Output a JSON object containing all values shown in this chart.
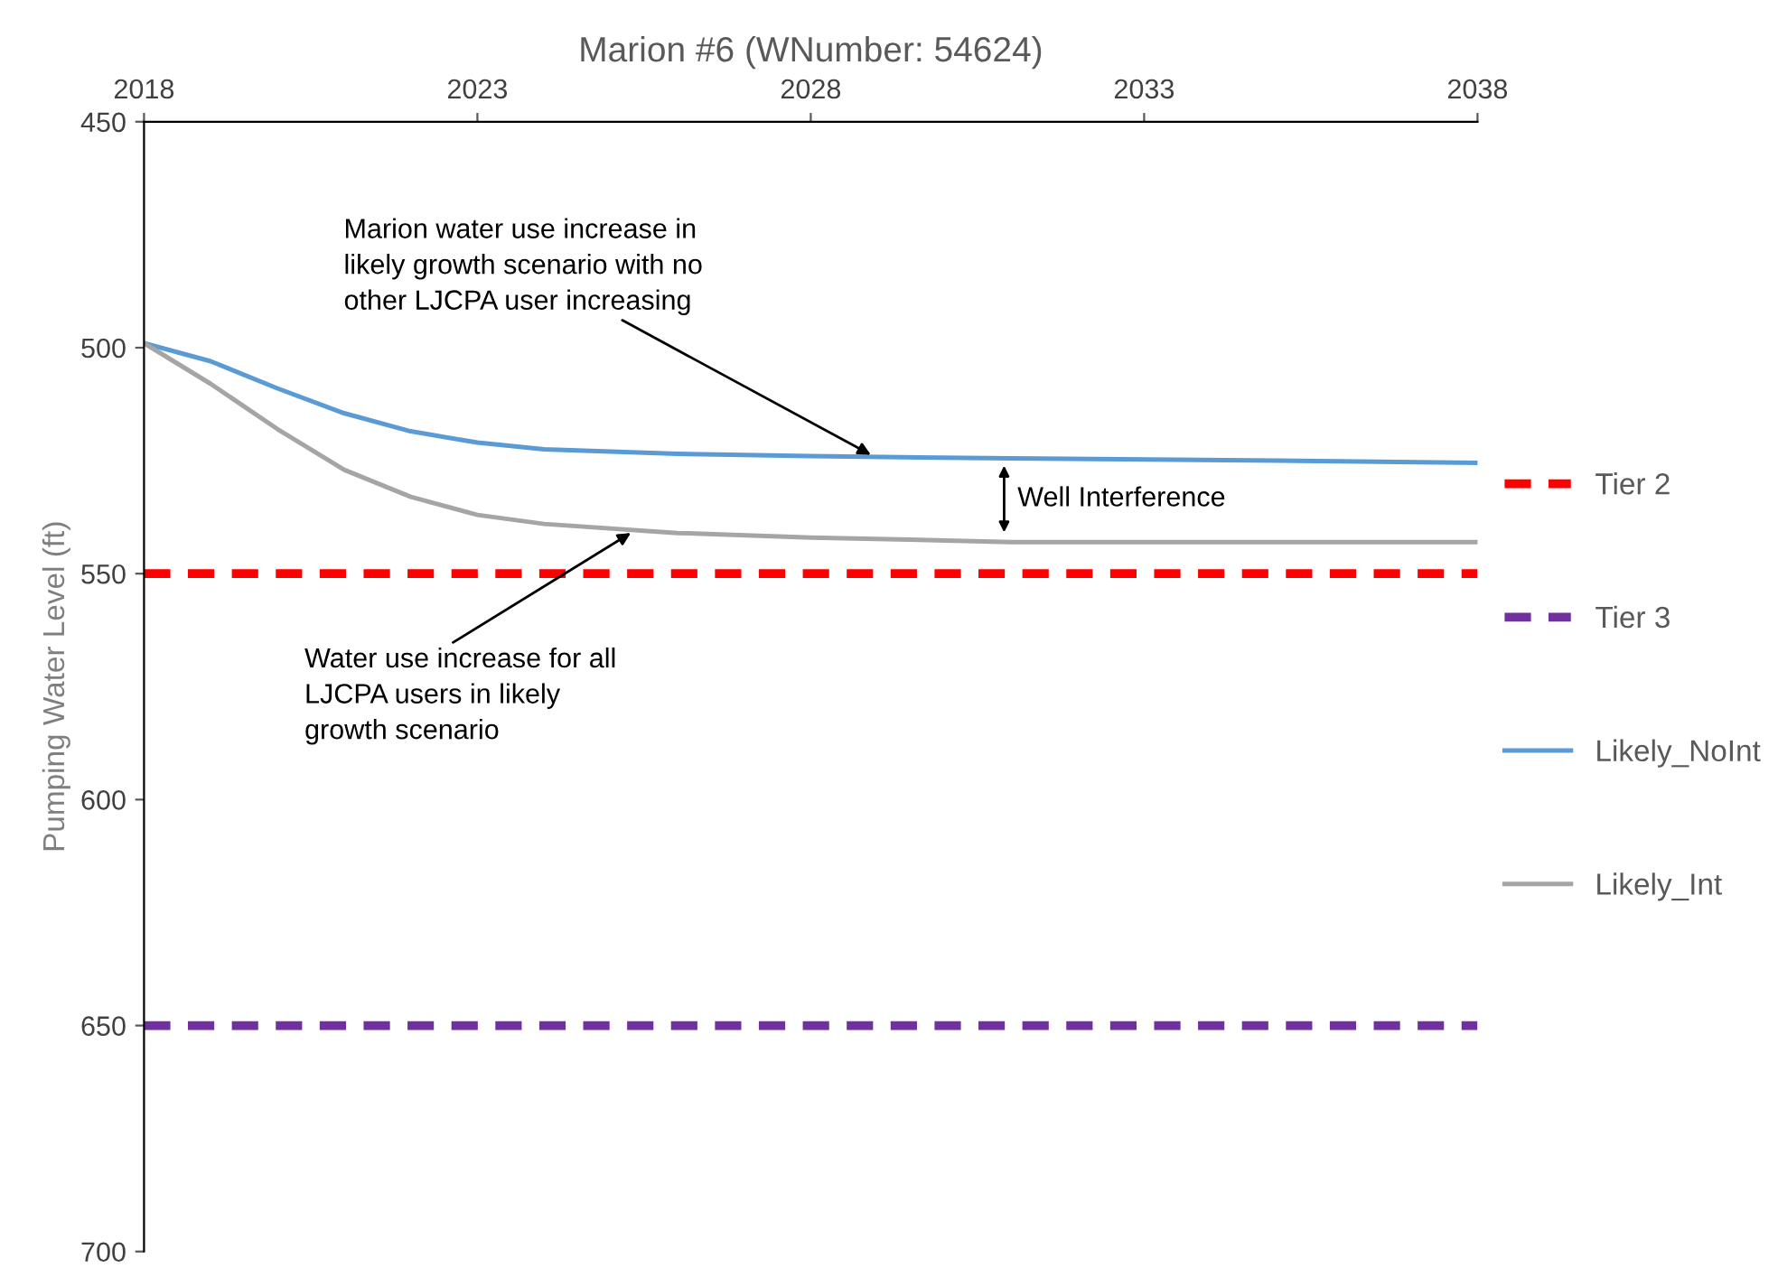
{
  "chart_data": {
    "type": "line",
    "title": "Marion #6 (WNumber: 54624)",
    "ylabel": "Pumping Water Level (ft)",
    "xlim": [
      2018,
      2038
    ],
    "xticks": [
      2018,
      2023,
      2028,
      2033,
      2038
    ],
    "ylim": [
      700,
      450
    ],
    "yticks": [
      450,
      500,
      550,
      600,
      650,
      700
    ],
    "grid": false,
    "legend": "right",
    "line_style": "solid",
    "marker": "none",
    "ref_lines": [
      {
        "axis": "y",
        "value": 550,
        "label": "Tier 2",
        "color": "#ff0000",
        "line_style": "dashed"
      },
      {
        "axis": "y",
        "value": 650,
        "label": "Tier 3",
        "color": "#7030a0",
        "line_style": "dashed"
      }
    ],
    "series": [
      {
        "name": "Likely_NoInt",
        "color": "#5b9bd5",
        "x": [
          2018,
          2019,
          2020,
          2021,
          2022,
          2023,
          2024,
          2026,
          2028,
          2031,
          2035,
          2038
        ],
        "values": [
          499,
          503,
          509,
          514.5,
          518.5,
          521,
          522.5,
          523.5,
          524,
          524.5,
          525,
          525.5
        ]
      },
      {
        "name": "Likely_Int",
        "color": "#a5a5a5",
        "x": [
          2018,
          2019,
          2020,
          2021,
          2022,
          2023,
          2024,
          2026,
          2028,
          2031,
          2035,
          2038
        ],
        "values": [
          499,
          508,
          518,
          527,
          533,
          537,
          539,
          541,
          542,
          543,
          543,
          543
        ]
      }
    ],
    "annotations": [
      {
        "text": "Marion water use increase in\nlikely growth scenario with no\nother LJCPA user increasing",
        "x": 2028.9,
        "y": 523.7
      },
      {
        "text": "Water use increase for all\nLJCPA users in likely\ngrowth scenario",
        "x": 2025.3,
        "y": 541
      },
      "Well Interference"
    ]
  }
}
